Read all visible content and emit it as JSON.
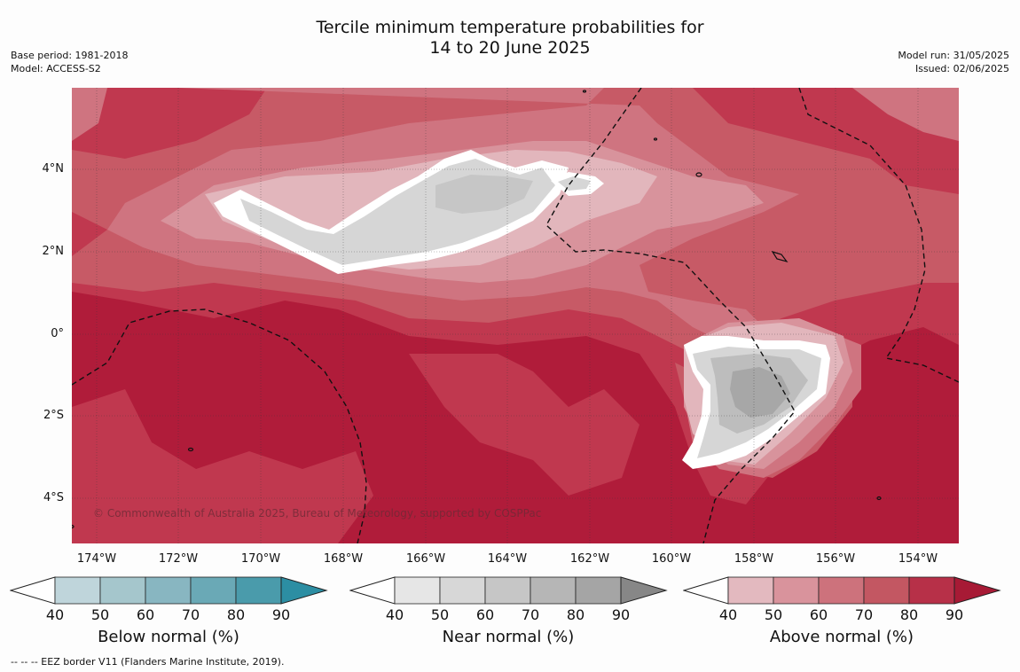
{
  "title": {
    "line1": "Tercile minimum temperature probabilities for",
    "line2": "14 to 20 June 2025"
  },
  "meta_left": {
    "base_period": "Base period: 1981-2018",
    "model": "Model: ACCESS-S2"
  },
  "meta_right": {
    "model_run": "Model run: 31/05/2025",
    "issued": "Issued: 02/06/2025"
  },
  "map": {
    "lat_labels": [
      "4°N",
      "2°N",
      "0°",
      "2°S",
      "4°S"
    ],
    "lon_labels": [
      "174°W",
      "172°W",
      "170°W",
      "168°W",
      "166°W",
      "164°W",
      "162°W",
      "160°W",
      "158°W",
      "156°W",
      "154°W"
    ],
    "copyright": "© Commonwealth of Australia 2025, Bureau of Meteorology, supported by COSPPac"
  },
  "colorbars": [
    {
      "title": "Below normal (%)",
      "ticks": [
        "40",
        "50",
        "60",
        "70",
        "80",
        "90"
      ],
      "colors": [
        "#bfd5db",
        "#a5c6cc",
        "#88b6c1",
        "#6aa9b6",
        "#4a9bab",
        "#2c8ea3"
      ],
      "low": "#ffffff"
    },
    {
      "title": "Near normal (%)",
      "ticks": [
        "40",
        "50",
        "60",
        "70",
        "80",
        "90"
      ],
      "colors": [
        "#e6e6e6",
        "#d7d7d7",
        "#c6c6c6",
        "#b6b6b6",
        "#a5a5a5",
        "#878787"
      ],
      "low": "#ffffff"
    },
    {
      "title": "Above normal (%)",
      "ticks": [
        "40",
        "50",
        "60",
        "70",
        "80",
        "90"
      ],
      "colors": [
        "#e3b9bf",
        "#d9939c",
        "#cd727c",
        "#c35762",
        "#b73048",
        "#a71a35"
      ],
      "low": "#ffffff"
    }
  ],
  "footer": "--  --  -- EEZ border V11 (Flanders Marine Institute, 2019)."
}
